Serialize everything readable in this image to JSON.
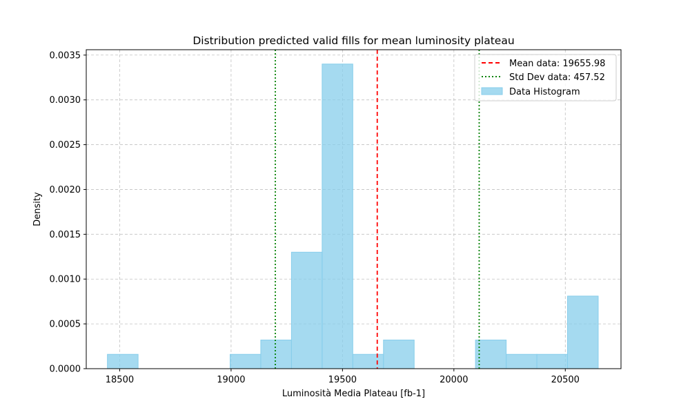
{
  "chart_data": {
    "type": "bar",
    "title": "Distribution predicted valid fills for mean luminosity plateau",
    "xlabel": "Luminosità Media Plateau [fb-1]",
    "ylabel": "Density",
    "xlim": [
      18350,
      20750
    ],
    "ylim": [
      0,
      0.00356
    ],
    "grid": true,
    "legend_position": "top-right",
    "x_ticks": [
      18500,
      19000,
      19500,
      20000,
      20500
    ],
    "x_tick_labels": [
      "18500",
      "19000",
      "19500",
      "20000",
      "20500"
    ],
    "y_ticks": [
      0,
      0.0005,
      0.001,
      0.0015,
      0.002,
      0.0025,
      0.003,
      0.0035
    ],
    "y_tick_labels": [
      "0.0000",
      "0.0005",
      "0.0010",
      "0.0015",
      "0.0020",
      "0.0025",
      "0.0030",
      "0.0035"
    ],
    "histogram": {
      "name": "Data Histogram",
      "color": "#87ceeb",
      "bin_edges": [
        18445,
        18582.7,
        18720.3,
        18858,
        18995.7,
        19133.3,
        19271,
        19408.7,
        19546.3,
        19684,
        19821.7,
        19959.3,
        20097,
        20234.7,
        20372.3,
        20510,
        20647.7
      ],
      "densities": [
        0.00016,
        0,
        0,
        0,
        0.00016,
        0.00032,
        0.0013,
        0.0034,
        0.00016,
        0.00032,
        0,
        0,
        0.00032,
        0.00016,
        0.00016,
        0.00081
      ]
    },
    "lines": [
      {
        "name": "Mean data: 19655.98",
        "x": 19655.98,
        "color": "#ff0000",
        "style": "dashed"
      },
      {
        "name": "Std Dev data: 457.52",
        "x": 19198.46,
        "color": "#008000",
        "style": "dotted"
      },
      {
        "name": "",
        "x": 20113.5,
        "color": "#008000",
        "style": "dotted"
      }
    ],
    "legend": [
      "Mean data: 19655.98",
      "Std Dev data: 457.52",
      "Data Histogram"
    ]
  }
}
